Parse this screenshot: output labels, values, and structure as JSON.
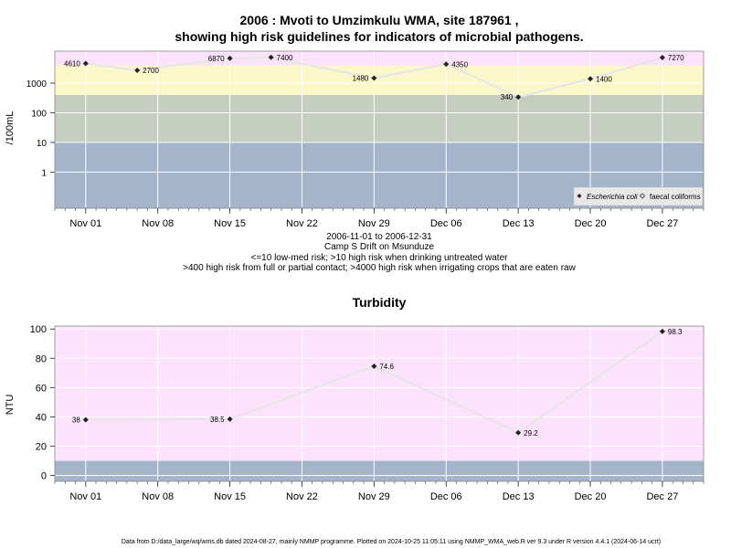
{
  "chart_data": [
    {
      "type": "line",
      "title_line1": "2006 : Mvoti to Umzimkulu WMA, site 187961 ,",
      "title_line2": "showing high risk guidelines for indicators of microbial pathogens.",
      "ylabel": "/100mL",
      "y_scale": "log",
      "ylim": [
        0.06,
        12000
      ],
      "yticks": [
        1,
        10,
        100,
        1000
      ],
      "ytick_labels": [
        "1",
        "10",
        "100",
        "1000"
      ],
      "xlim": [
        "2006-10-29",
        "2006-12-31"
      ],
      "xticks": [
        "2006-11-01",
        "2006-11-08",
        "2006-11-15",
        "2006-11-22",
        "2006-11-29",
        "2006-12-06",
        "2006-12-13",
        "2006-12-20",
        "2006-12-27"
      ],
      "xtick_labels": [
        "Nov 01",
        "Nov 08",
        "Nov 15",
        "Nov 22",
        "Nov 29",
        "Dec 06",
        "Dec 13",
        "Dec 20",
        "Dec 27"
      ],
      "bands": [
        {
          "from": 0.06,
          "to": 10,
          "color": "#a3b4cb"
        },
        {
          "from": 10,
          "to": 400,
          "color": "#c5ccc0"
        },
        {
          "from": 400,
          "to": 4000,
          "color": "#fbf7c8"
        },
        {
          "from": 4000,
          "to": 12000,
          "color": "#fde2fd"
        }
      ],
      "grid": true,
      "legend_position": "bottom-right",
      "legend": [
        {
          "name": "Escherichia coli",
          "marker": "filled-diamond"
        },
        {
          "name": "faecal coliforms",
          "marker": "open-diamond"
        }
      ],
      "series": [
        {
          "name": "Escherichia coli",
          "x": [
            "2006-11-01",
            "2006-11-06",
            "2006-11-15",
            "2006-11-19",
            "2006-11-29",
            "2006-12-06",
            "2006-12-13",
            "2006-12-20",
            "2006-12-27"
          ],
          "values": [
            4610,
            2700,
            6870,
            7400,
            1480,
            4350,
            340,
            1400,
            7270
          ],
          "labels": [
            "4610",
            "2700",
            "6870",
            "7400",
            "1480",
            "4350",
            "340",
            "1400",
            "7270"
          ],
          "label_side": [
            "left",
            "right",
            "left",
            "right",
            "left",
            "right",
            "left",
            "right",
            "right"
          ]
        }
      ],
      "notes": [
        "2006-11-01 to 2006-12-31",
        "Camp S Drift on Msunduze",
        "<=10 low-med risk; >10 high risk when drinking untreated water",
        ">400 high risk from full or partial contact; >4000 high risk when irrigating crops that are eaten raw"
      ]
    },
    {
      "type": "line",
      "title": "Turbidity",
      "ylabel": "NTU",
      "ylim": [
        -4,
        102
      ],
      "yticks": [
        0,
        20,
        40,
        60,
        80,
        100
      ],
      "ytick_labels": [
        "0",
        "20",
        "40",
        "60",
        "80",
        "100"
      ],
      "xlim": [
        "2006-10-29",
        "2006-12-31"
      ],
      "xticks": [
        "2006-11-01",
        "2006-11-08",
        "2006-11-15",
        "2006-11-22",
        "2006-11-29",
        "2006-12-06",
        "2006-12-13",
        "2006-12-20",
        "2006-12-27"
      ],
      "xtick_labels": [
        "Nov 01",
        "Nov 08",
        "Nov 15",
        "Nov 22",
        "Nov 29",
        "Dec 06",
        "Dec 13",
        "Dec 20",
        "Dec 27"
      ],
      "bands": [
        {
          "from": -4,
          "to": 10,
          "color": "#a3b4cb"
        },
        {
          "from": 10,
          "to": 102,
          "color": "#fde2fd"
        }
      ],
      "grid": true,
      "series": [
        {
          "name": "Turbidity",
          "x": [
            "2006-11-01",
            "2006-11-15",
            "2006-11-29",
            "2006-12-13",
            "2006-12-27"
          ],
          "values": [
            38,
            38.5,
            74.6,
            29.2,
            98.3
          ],
          "labels": [
            "38",
            "38.5",
            "74.6",
            "29.2",
            "98.3"
          ],
          "label_side": [
            "left",
            "left",
            "right",
            "right",
            "right"
          ]
        }
      ]
    }
  ],
  "footer": "Data from D:/data_large/wq/wms.db dated 2024-08-27, mainly NMMP programme. Plotted on 2024-10-25 11:05:11 using NMMP_WMA_web.R ver 9.3 under R version 4.4.1 (2024-06-14 ucrt)"
}
